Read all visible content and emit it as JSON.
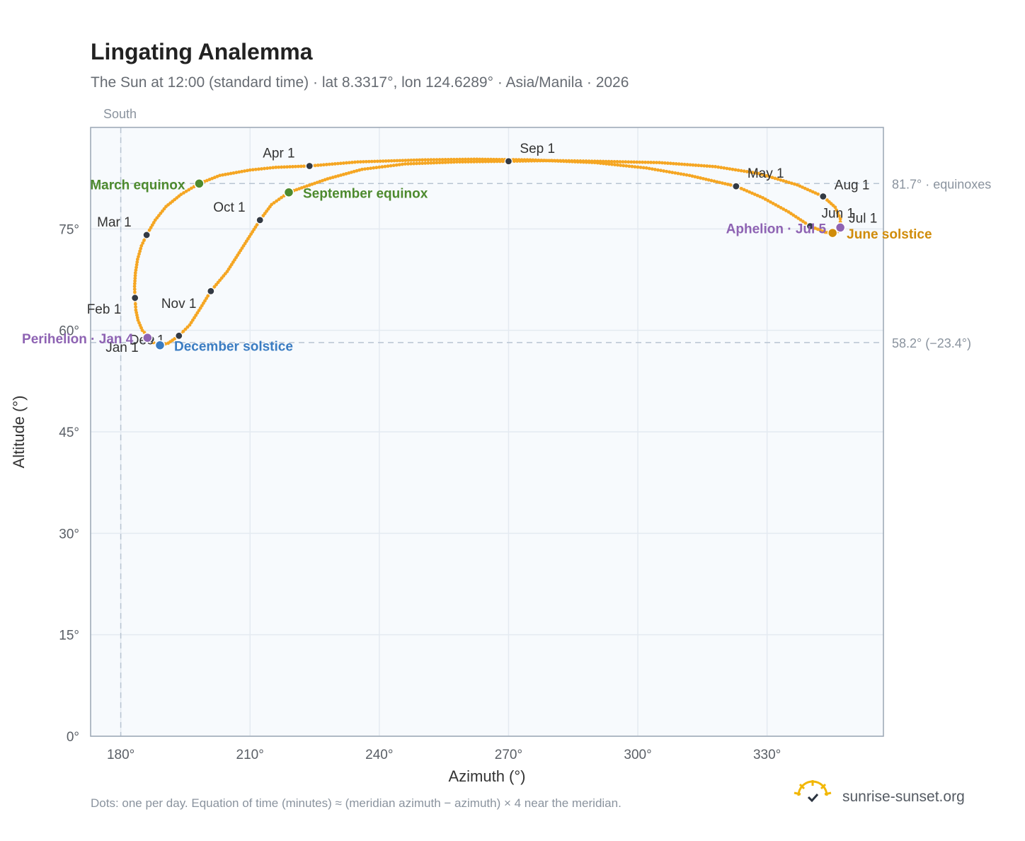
{
  "title": "Lingating Analemma",
  "subtitle": "The Sun at 12:00 (standard time) · lat 8.3317°, lon 124.6289° · Asia/Manila · 2026",
  "south_label": "South",
  "footnote": "Dots: one per day. Equation of time (minutes) ≈ (meridian azimuth − azimuth) × 4 near the meridian.",
  "brand": {
    "name": "sunrise-sunset.org",
    "icon": "sunrise-logo-icon"
  },
  "colors": {
    "curve": "#f5a623",
    "month_marker": "#333a44",
    "equinox": "#4d8a2e",
    "june_solstice": "#d08c0a",
    "december_solstice": "#3a7cc2",
    "apsis": "#8e63b3",
    "plot_bg": "#f7fafd",
    "grid": "#e4eaf1",
    "ref_line": "#b8c4d2"
  },
  "chart_data": {
    "type": "scatter",
    "title": "Lingating Analemma",
    "xlabel": "Azimuth (°)",
    "ylabel": "Altitude (°)",
    "xlim": [
      173,
      357
    ],
    "ylim": [
      0,
      90
    ],
    "x_ticks": [
      180,
      210,
      240,
      270,
      300,
      330
    ],
    "x_tick_labels": [
      "180°",
      "210°",
      "240°",
      "270°",
      "300°",
      "330°"
    ],
    "y_ticks": [
      0,
      15,
      30,
      45,
      60,
      75
    ],
    "y_tick_labels": [
      "0°",
      "15°",
      "30°",
      "45°",
      "60°",
      "75°"
    ],
    "grid": true,
    "reference_lines": [
      {
        "axis": "y",
        "value": 81.7,
        "label": "81.7° · equinoxes"
      },
      {
        "axis": "y",
        "value": 58.2,
        "label": "58.2° (−23.4°)"
      },
      {
        "axis": "x",
        "value": 180,
        "label": "South"
      }
    ],
    "month_markers": [
      {
        "label": "Jan 1",
        "az": 187.0,
        "alt": 58.7
      },
      {
        "label": "Feb 1",
        "az": 183.3,
        "alt": 64.8
      },
      {
        "label": "Mar 1",
        "az": 186.0,
        "alt": 74.1
      },
      {
        "label": "Apr 1",
        "az": 223.8,
        "alt": 84.3
      },
      {
        "label": "May 1",
        "az": 322.8,
        "alt": 81.3
      },
      {
        "label": "Jun 1",
        "az": 340.0,
        "alt": 75.4
      },
      {
        "label": "Jul 1",
        "az": 347.0,
        "alt": 75.1
      },
      {
        "label": "Aug 1",
        "az": 343.0,
        "alt": 79.8
      },
      {
        "label": "Sep 1",
        "az": 270.0,
        "alt": 85.0
      },
      {
        "label": "Oct 1",
        "az": 212.3,
        "alt": 76.3
      },
      {
        "label": "Nov 1",
        "az": 200.9,
        "alt": 65.8
      },
      {
        "label": "Dec 1",
        "az": 193.5,
        "alt": 59.2
      }
    ],
    "events": [
      {
        "label": "March equinox",
        "az": 198.2,
        "alt": 81.7,
        "color_key": "equinox",
        "label_side": "left"
      },
      {
        "label": "September equinox",
        "az": 219.0,
        "alt": 80.4,
        "color_key": "equinox",
        "label_side": "right"
      },
      {
        "label": "June solstice",
        "az": 345.2,
        "alt": 74.4,
        "color_key": "june_solstice",
        "label_side": "right"
      },
      {
        "label": "December solstice",
        "az": 189.1,
        "alt": 57.8,
        "color_key": "december_solstice",
        "label_side": "right"
      },
      {
        "label": "Perihelion · Jan 4",
        "az": 186.2,
        "alt": 58.9,
        "color_key": "apsis",
        "label_side": "left"
      },
      {
        "label": "Aphelion · Jul 5",
        "az": 347.0,
        "alt": 75.2,
        "color_key": "apsis",
        "label_side": "left"
      }
    ],
    "series": [
      {
        "name": "Daily sun position",
        "path": [
          {
            "az": 187.0,
            "alt": 58.7
          },
          {
            "az": 185.0,
            "alt": 60.0
          },
          {
            "az": 184.0,
            "alt": 61.5
          },
          {
            "az": 183.5,
            "alt": 63.0
          },
          {
            "az": 183.3,
            "alt": 64.8
          },
          {
            "az": 183.2,
            "alt": 66.5
          },
          {
            "az": 183.4,
            "alt": 68.5
          },
          {
            "az": 183.9,
            "alt": 70.5
          },
          {
            "az": 184.8,
            "alt": 72.5
          },
          {
            "az": 186.0,
            "alt": 74.1
          },
          {
            "az": 188.0,
            "alt": 76.3
          },
          {
            "az": 190.5,
            "alt": 78.3
          },
          {
            "az": 194.0,
            "alt": 80.1
          },
          {
            "az": 198.2,
            "alt": 81.7
          },
          {
            "az": 203.0,
            "alt": 82.9
          },
          {
            "az": 210.0,
            "alt": 83.7
          },
          {
            "az": 216.0,
            "alt": 84.1
          },
          {
            "az": 223.8,
            "alt": 84.3
          },
          {
            "az": 235.0,
            "alt": 84.9
          },
          {
            "az": 250.0,
            "alt": 85.2
          },
          {
            "az": 262.0,
            "alt": 85.3
          },
          {
            "az": 275.0,
            "alt": 85.2
          },
          {
            "az": 290.0,
            "alt": 84.8
          },
          {
            "az": 302.0,
            "alt": 84.0
          },
          {
            "az": 312.0,
            "alt": 82.9
          },
          {
            "az": 322.8,
            "alt": 81.3
          },
          {
            "az": 329.0,
            "alt": 79.6
          },
          {
            "az": 335.0,
            "alt": 77.5
          },
          {
            "az": 340.0,
            "alt": 75.4
          },
          {
            "az": 343.5,
            "alt": 74.5
          },
          {
            "az": 345.2,
            "alt": 74.4
          },
          {
            "az": 346.4,
            "alt": 74.6
          },
          {
            "az": 347.0,
            "alt": 75.1
          },
          {
            "az": 347.0,
            "alt": 76.5
          },
          {
            "az": 345.8,
            "alt": 78.2
          },
          {
            "az": 343.0,
            "alt": 79.8
          },
          {
            "az": 337.0,
            "alt": 81.5
          },
          {
            "az": 328.0,
            "alt": 83.2
          },
          {
            "az": 318.0,
            "alt": 84.2
          },
          {
            "az": 305.0,
            "alt": 84.8
          },
          {
            "az": 290.0,
            "alt": 85.0
          },
          {
            "az": 280.0,
            "alt": 85.1
          },
          {
            "az": 270.0,
            "alt": 85.0
          },
          {
            "az": 258.0,
            "alt": 84.9
          },
          {
            "az": 246.0,
            "alt": 84.6
          },
          {
            "az": 236.0,
            "alt": 83.8
          },
          {
            "az": 228.0,
            "alt": 82.4
          },
          {
            "az": 219.0,
            "alt": 80.4
          },
          {
            "az": 215.0,
            "alt": 78.6
          },
          {
            "az": 212.3,
            "alt": 76.3
          },
          {
            "az": 208.5,
            "alt": 72.5
          },
          {
            "az": 204.7,
            "alt": 68.7
          },
          {
            "az": 200.9,
            "alt": 65.8
          },
          {
            "az": 198.5,
            "alt": 63.3
          },
          {
            "az": 196.0,
            "alt": 60.8
          },
          {
            "az": 193.5,
            "alt": 59.2
          },
          {
            "az": 191.0,
            "alt": 58.1
          },
          {
            "az": 189.1,
            "alt": 57.8
          },
          {
            "az": 187.6,
            "alt": 58.2
          },
          {
            "az": 187.0,
            "alt": 58.7
          }
        ]
      }
    ]
  }
}
